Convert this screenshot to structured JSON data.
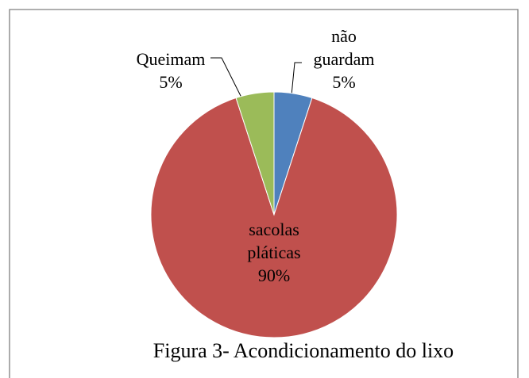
{
  "chart_data": {
    "type": "pie",
    "title": "Figura 3- Acondicionamento do lixo",
    "categories": [
      "não guardam",
      "sacolas pláticas",
      "Queimam"
    ],
    "values": [
      5,
      90,
      5
    ],
    "value_labels": [
      "5%",
      "90%",
      "5%"
    ],
    "colors": [
      "#4f81bd",
      "#c0504d",
      "#9bbb59"
    ]
  }
}
